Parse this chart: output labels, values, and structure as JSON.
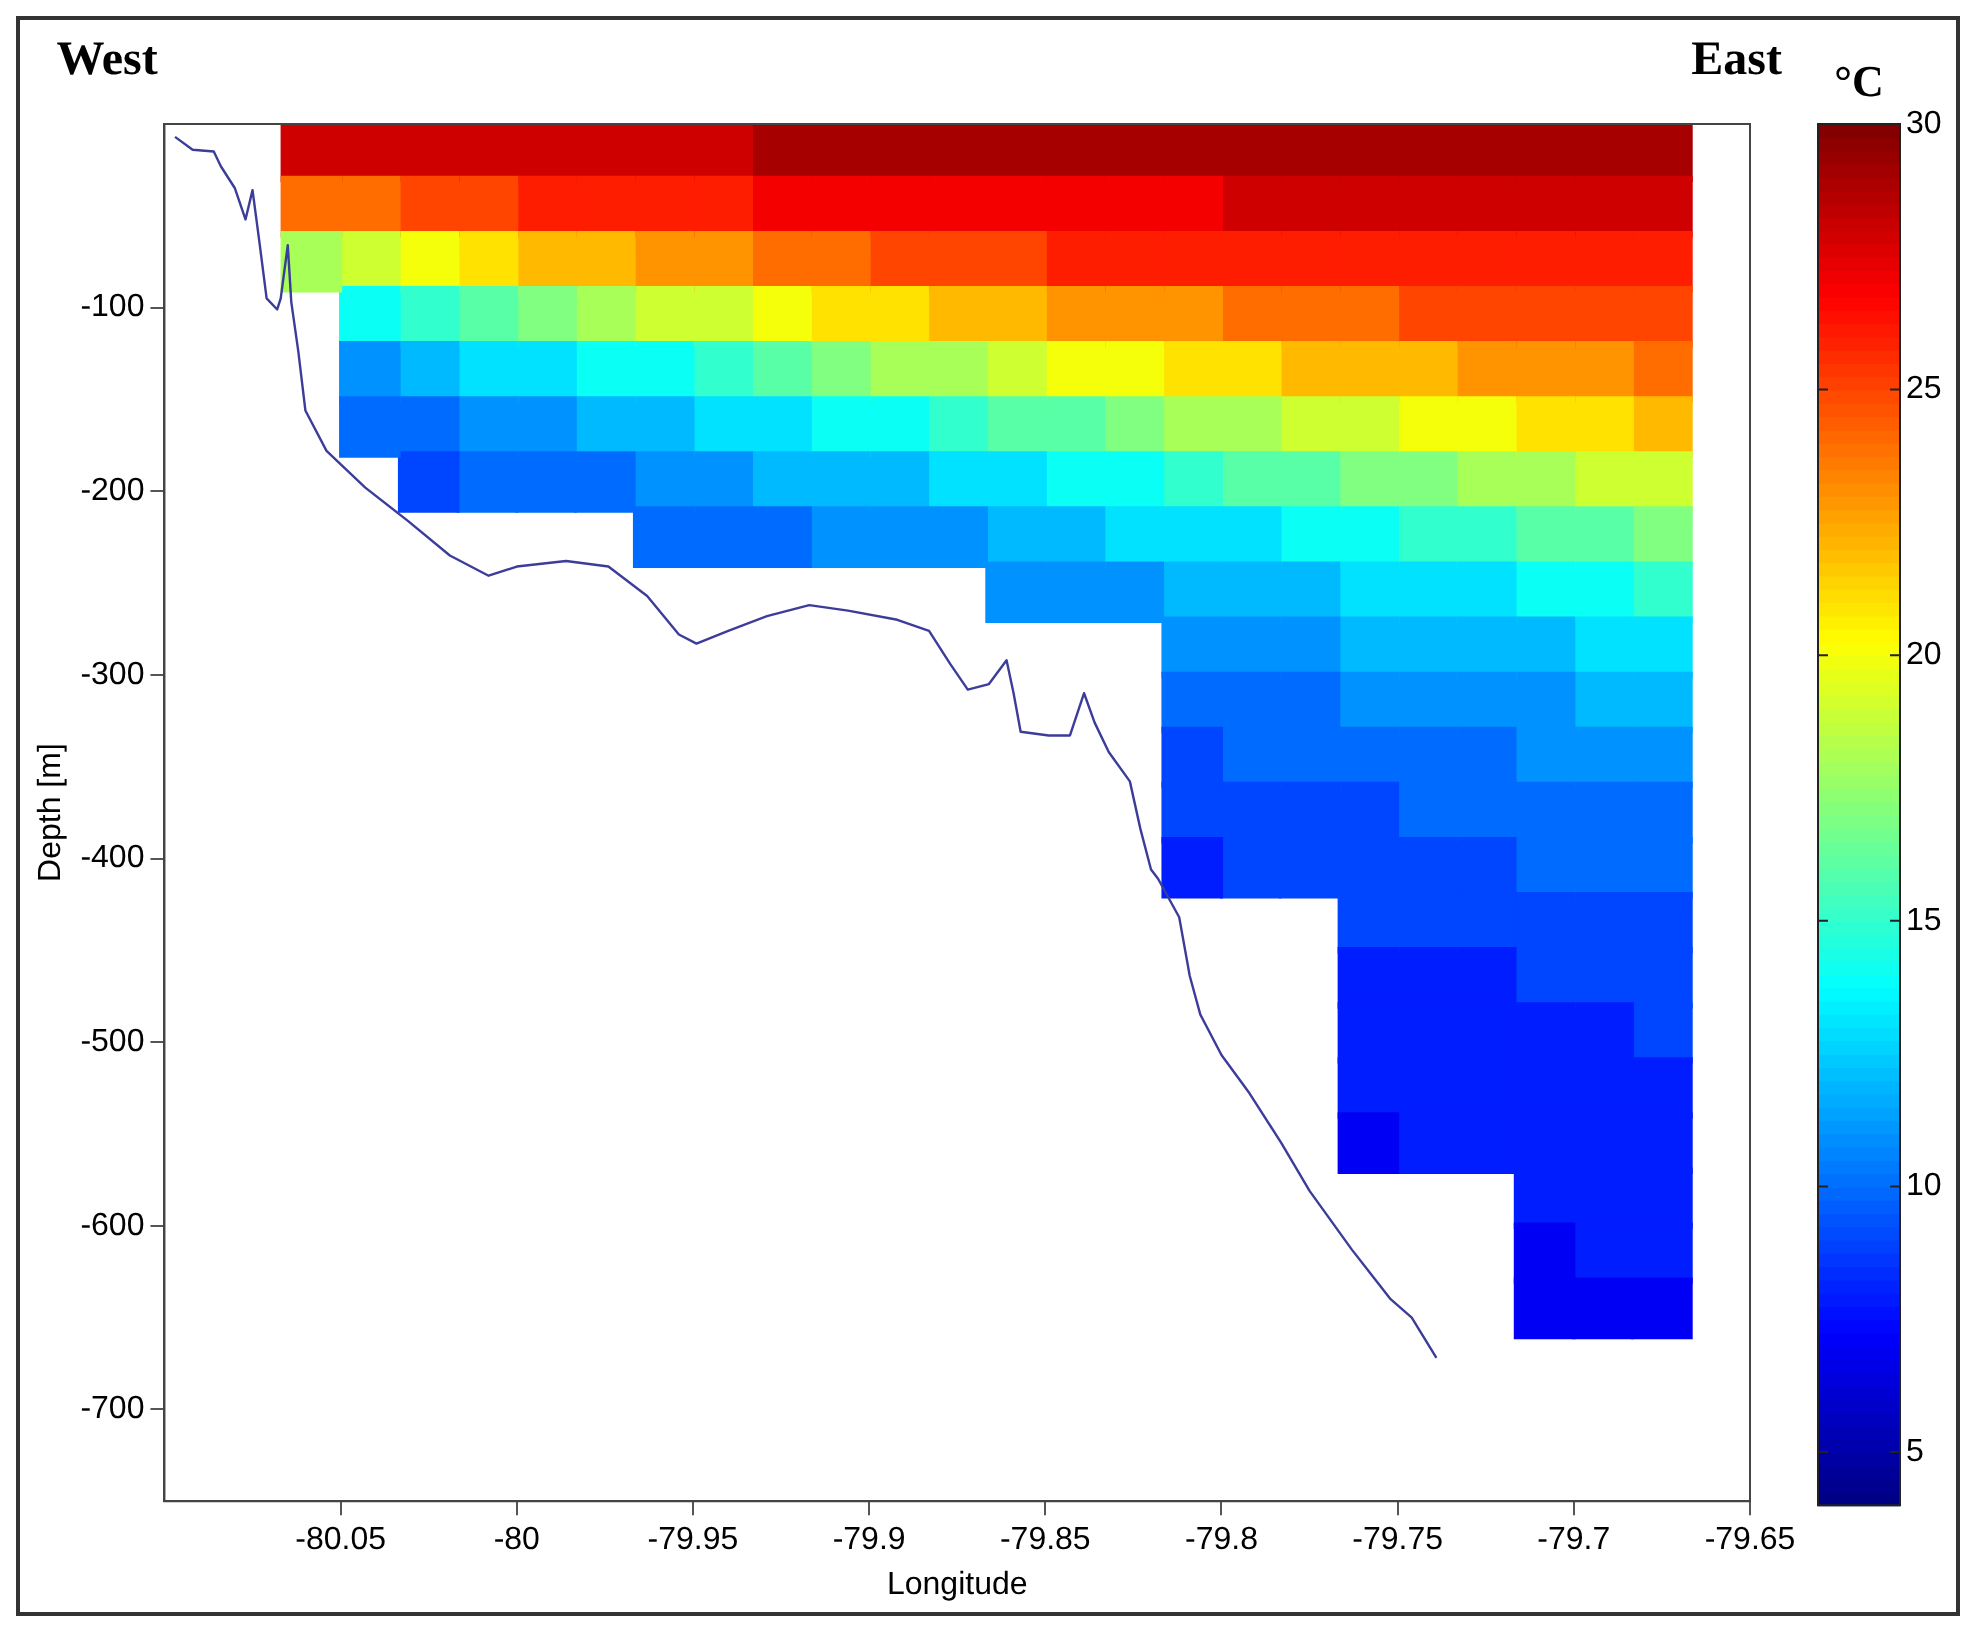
{
  "chart_data": {
    "type": "scatter",
    "marker": "square",
    "annotations": [
      "West",
      "East"
    ],
    "xlabel": "Longitude",
    "ylabel": "Depth [m]",
    "clabel": "°C",
    "clim": [
      4,
      30
    ],
    "cticks": [
      5,
      10,
      15,
      20,
      25,
      30
    ],
    "series": [
      {
        "type": "scatter",
        "x": [
          -80.0583,
          -80.0583,
          -80.0583
        ],
        "values": [
          -15,
          -45,
          -75
        ],
        "cvalues": [
          28,
          24,
          18
        ],
        "colors": [
          "#ce0000",
          "#ff6c00",
          "#a7ff58"
        ]
      },
      {
        "type": "scatter",
        "x": [
          -80.0417,
          -80.0417,
          -80.0417,
          -80.0417,
          -80.0417,
          -80.0417
        ],
        "values": [
          -15,
          -45,
          -75,
          -105,
          -135,
          -165
        ],
        "cvalues": [
          28,
          24,
          19,
          14,
          11,
          10
        ],
        "colors": [
          "#ce0000",
          "#ff6c00",
          "#ceff31",
          "#0afff5",
          "#0093ff",
          "#006cff"
        ]
      },
      {
        "type": "scatter",
        "x": [
          -80.025,
          -80.025,
          -80.025,
          -80.025,
          -80.025,
          -80.025,
          -80.025
        ],
        "values": [
          -15,
          -45,
          -75,
          -105,
          -135,
          -165,
          -195
        ],
        "cvalues": [
          28,
          25,
          20,
          15,
          12,
          10,
          9
        ],
        "colors": [
          "#ce0000",
          "#ff4500",
          "#f5ff0a",
          "#31ffce",
          "#00baff",
          "#006cff",
          "#0045ff"
        ]
      },
      {
        "type": "scatter",
        "x": [
          -80.0083,
          -80.0083,
          -80.0083,
          -80.0083,
          -80.0083,
          -80.0083,
          -80.0083
        ],
        "values": [
          -15,
          -45,
          -75,
          -105,
          -135,
          -165,
          -195
        ],
        "cvalues": [
          28,
          25,
          21,
          16,
          13,
          11,
          10
        ],
        "colors": [
          "#ce0000",
          "#ff4500",
          "#ffe200",
          "#58ffa7",
          "#00e2ff",
          "#0093ff",
          "#006cff"
        ]
      },
      {
        "type": "scatter",
        "x": [
          -79.9917,
          -79.9917,
          -79.9917,
          -79.9917,
          -79.9917,
          -79.9917,
          -79.9917
        ],
        "values": [
          -15,
          -45,
          -75,
          -105,
          -135,
          -165,
          -195
        ],
        "cvalues": [
          28,
          26,
          22,
          17,
          13,
          11,
          10
        ],
        "colors": [
          "#ce0000",
          "#ff1d00",
          "#ffba00",
          "#80ff80",
          "#00e2ff",
          "#0093ff",
          "#006cff"
        ]
      },
      {
        "type": "scatter",
        "x": [
          -79.975,
          -79.975,
          -79.975,
          -79.975,
          -79.975,
          -79.975,
          -79.975
        ],
        "values": [
          -15,
          -45,
          -75,
          -105,
          -135,
          -165,
          -195
        ],
        "cvalues": [
          28,
          26,
          22,
          18,
          14,
          12,
          10
        ],
        "colors": [
          "#ce0000",
          "#ff1d00",
          "#ffba00",
          "#a7ff58",
          "#0afff5",
          "#00baff",
          "#006cff"
        ]
      },
      {
        "type": "scatter",
        "x": [
          -79.9583,
          -79.9583,
          -79.9583,
          -79.9583,
          -79.9583,
          -79.9583,
          -79.9583,
          -79.9583
        ],
        "values": [
          -15,
          -45,
          -75,
          -105,
          -135,
          -165,
          -195,
          -225
        ],
        "cvalues": [
          28,
          26,
          23,
          19,
          14,
          12,
          11,
          10
        ],
        "colors": [
          "#ce0000",
          "#ff1d00",
          "#ff9300",
          "#ceff31",
          "#0afff5",
          "#00baff",
          "#0093ff",
          "#006cff"
        ]
      },
      {
        "type": "scatter",
        "x": [
          -79.9417,
          -79.9417,
          -79.9417,
          -79.9417,
          -79.9417,
          -79.9417,
          -79.9417,
          -79.9417
        ],
        "values": [
          -15,
          -45,
          -75,
          -105,
          -135,
          -165,
          -195,
          -225
        ],
        "cvalues": [
          28,
          26,
          23,
          19,
          15,
          13,
          11,
          10
        ],
        "colors": [
          "#ce0000",
          "#ff1d00",
          "#ff9300",
          "#ceff31",
          "#31ffce",
          "#00e2ff",
          "#0093ff",
          "#006cff"
        ]
      },
      {
        "type": "scatter",
        "x": [
          -79.925,
          -79.925,
          -79.925,
          -79.925,
          -79.925,
          -79.925,
          -79.925,
          -79.925
        ],
        "values": [
          -15,
          -45,
          -75,
          -105,
          -135,
          -165,
          -195,
          -225
        ],
        "cvalues": [
          29,
          27,
          24,
          20,
          16,
          13,
          12,
          10
        ],
        "colors": [
          "#a70000",
          "#f50000",
          "#ff6c00",
          "#f5ff0a",
          "#58ffa7",
          "#00e2ff",
          "#00baff",
          "#006cff"
        ]
      },
      {
        "type": "scatter",
        "x": [
          -79.9083,
          -79.9083,
          -79.9083,
          -79.9083,
          -79.9083,
          -79.9083,
          -79.9083,
          -79.9083
        ],
        "values": [
          -15,
          -45,
          -75,
          -105,
          -135,
          -165,
          -195,
          -225
        ],
        "cvalues": [
          29,
          27,
          24,
          21,
          17,
          14,
          12,
          11
        ],
        "colors": [
          "#a70000",
          "#f50000",
          "#ff6c00",
          "#ffe200",
          "#80ff80",
          "#0afff5",
          "#00baff",
          "#0093ff"
        ]
      },
      {
        "type": "scatter",
        "x": [
          -79.8917,
          -79.8917,
          -79.8917,
          -79.8917,
          -79.8917,
          -79.8917,
          -79.8917,
          -79.8917
        ],
        "values": [
          -15,
          -45,
          -75,
          -105,
          -135,
          -165,
          -195,
          -225
        ],
        "cvalues": [
          29,
          27,
          25,
          21,
          18,
          14,
          12,
          11
        ],
        "colors": [
          "#a70000",
          "#f50000",
          "#ff4500",
          "#ffe200",
          "#a7ff58",
          "#0afff5",
          "#00baff",
          "#0093ff"
        ]
      },
      {
        "type": "scatter",
        "x": [
          -79.875,
          -79.875,
          -79.875,
          -79.875,
          -79.875,
          -79.875,
          -79.875,
          -79.875
        ],
        "values": [
          -15,
          -45,
          -75,
          -105,
          -135,
          -165,
          -195,
          -225
        ],
        "cvalues": [
          29,
          27,
          25,
          22,
          18,
          15,
          13,
          11
        ],
        "colors": [
          "#a70000",
          "#f50000",
          "#ff4500",
          "#ffba00",
          "#a7ff58",
          "#31ffce",
          "#00e2ff",
          "#0093ff"
        ]
      },
      {
        "type": "scatter",
        "x": [
          -79.8583,
          -79.8583,
          -79.8583,
          -79.8583,
          -79.8583,
          -79.8583,
          -79.8583,
          -79.8583,
          -79.8583
        ],
        "values": [
          -15,
          -45,
          -75,
          -105,
          -135,
          -165,
          -195,
          -225,
          -255
        ],
        "cvalues": [
          29,
          27,
          25,
          22,
          19,
          16,
          13,
          12,
          11
        ],
        "colors": [
          "#a70000",
          "#f50000",
          "#ff4500",
          "#ffba00",
          "#ceff31",
          "#58ffa7",
          "#00e2ff",
          "#00baff",
          "#0093ff"
        ]
      },
      {
        "type": "scatter",
        "x": [
          -79.8417,
          -79.8417,
          -79.8417,
          -79.8417,
          -79.8417,
          -79.8417,
          -79.8417,
          -79.8417,
          -79.8417
        ],
        "values": [
          -15,
          -45,
          -75,
          -105,
          -135,
          -165,
          -195,
          -225,
          -255
        ],
        "cvalues": [
          29,
          27,
          26,
          23,
          20,
          16,
          14,
          12,
          11
        ],
        "colors": [
          "#a70000",
          "#f50000",
          "#ff1d00",
          "#ff9300",
          "#f5ff0a",
          "#58ffa7",
          "#0afff5",
          "#00baff",
          "#0093ff"
        ]
      },
      {
        "type": "scatter",
        "x": [
          -79.825,
          -79.825,
          -79.825,
          -79.825,
          -79.825,
          -79.825,
          -79.825,
          -79.825,
          -79.825
        ],
        "values": [
          -15,
          -45,
          -75,
          -105,
          -135,
          -165,
          -195,
          -225,
          -255
        ],
        "cvalues": [
          29,
          27,
          26,
          23,
          20,
          17,
          14,
          13,
          11
        ],
        "colors": [
          "#a70000",
          "#f50000",
          "#ff1d00",
          "#ff9300",
          "#f5ff0a",
          "#80ff80",
          "#0afff5",
          "#00e2ff",
          "#0093ff"
        ]
      },
      {
        "type": "scatter",
        "x": [
          -79.8083,
          -79.8083,
          -79.8083,
          -79.8083,
          -79.8083,
          -79.8083,
          -79.8083,
          -79.8083,
          -79.8083,
          -79.8083,
          -79.8083,
          -79.8083,
          -79.8083,
          -79.8083
        ],
        "values": [
          -15,
          -45,
          -75,
          -105,
          -135,
          -165,
          -195,
          -225,
          -255,
          -285,
          -315,
          -345,
          -375,
          -405
        ],
        "cvalues": [
          29,
          27,
          26,
          23,
          21,
          18,
          15,
          13,
          12,
          11,
          10,
          9,
          9,
          8
        ],
        "colors": [
          "#a70000",
          "#f50000",
          "#ff1d00",
          "#ff9300",
          "#ffe200",
          "#a7ff58",
          "#31ffce",
          "#00e2ff",
          "#00baff",
          "#0093ff",
          "#006cff",
          "#0045ff",
          "#0045ff",
          "#001dff"
        ]
      },
      {
        "type": "scatter",
        "x": [
          -79.7917,
          -79.7917,
          -79.7917,
          -79.7917,
          -79.7917,
          -79.7917,
          -79.7917,
          -79.7917,
          -79.7917,
          -79.7917,
          -79.7917,
          -79.7917,
          -79.7917,
          -79.7917
        ],
        "values": [
          -15,
          -45,
          -75,
          -105,
          -135,
          -165,
          -195,
          -225,
          -255,
          -285,
          -315,
          -345,
          -375,
          -405
        ],
        "cvalues": [
          29,
          28,
          26,
          24,
          21,
          18,
          16,
          13,
          12,
          11,
          10,
          10,
          9,
          9
        ],
        "colors": [
          "#a70000",
          "#ce0000",
          "#ff1d00",
          "#ff6c00",
          "#ffe200",
          "#a7ff58",
          "#58ffa7",
          "#00e2ff",
          "#00baff",
          "#0093ff",
          "#006cff",
          "#006cff",
          "#0045ff",
          "#0045ff"
        ]
      },
      {
        "type": "scatter",
        "x": [
          -79.775,
          -79.775,
          -79.775,
          -79.775,
          -79.775,
          -79.775,
          -79.775,
          -79.775,
          -79.775,
          -79.775,
          -79.775,
          -79.775,
          -79.775,
          -79.775
        ],
        "values": [
          -15,
          -45,
          -75,
          -105,
          -135,
          -165,
          -195,
          -225,
          -255,
          -285,
          -315,
          -345,
          -375,
          -405
        ],
        "cvalues": [
          29,
          28,
          26,
          24,
          22,
          19,
          16,
          14,
          12,
          11,
          10,
          10,
          9,
          9
        ],
        "colors": [
          "#a70000",
          "#ce0000",
          "#ff1d00",
          "#ff6c00",
          "#ffba00",
          "#ceff31",
          "#58ffa7",
          "#0afff5",
          "#00baff",
          "#0093ff",
          "#006cff",
          "#006cff",
          "#0045ff",
          "#0045ff"
        ]
      },
      {
        "type": "scatter",
        "x": [
          -79.7583,
          -79.7583,
          -79.7583,
          -79.7583,
          -79.7583,
          -79.7583,
          -79.7583,
          -79.7583,
          -79.7583,
          -79.7583,
          -79.7583,
          -79.7583,
          -79.7583,
          -79.7583,
          -79.7583,
          -79.7583,
          -79.7583,
          -79.7583,
          -79.7583
        ],
        "values": [
          -15,
          -45,
          -75,
          -105,
          -135,
          -165,
          -195,
          -225,
          -255,
          -285,
          -315,
          -345,
          -375,
          -405,
          -435,
          -465,
          -495,
          -525,
          -555
        ],
        "cvalues": [
          29,
          28,
          26,
          24,
          22,
          19,
          17,
          14,
          13,
          12,
          11,
          10,
          9,
          9,
          9,
          8,
          8,
          8,
          7
        ],
        "colors": [
          "#a70000",
          "#ce0000",
          "#ff1d00",
          "#ff6c00",
          "#ffba00",
          "#ceff31",
          "#80ff80",
          "#0afff5",
          "#00e2ff",
          "#00baff",
          "#0093ff",
          "#006cff",
          "#0045ff",
          "#0045ff",
          "#0045ff",
          "#001dff",
          "#001dff",
          "#001dff",
          "#0000f5"
        ]
      },
      {
        "type": "scatter",
        "x": [
          -79.7417,
          -79.7417,
          -79.7417,
          -79.7417,
          -79.7417,
          -79.7417,
          -79.7417,
          -79.7417,
          -79.7417,
          -79.7417,
          -79.7417,
          -79.7417,
          -79.7417,
          -79.7417,
          -79.7417,
          -79.7417,
          -79.7417,
          -79.7417,
          -79.7417
        ],
        "values": [
          -15,
          -45,
          -75,
          -105,
          -135,
          -165,
          -195,
          -225,
          -255,
          -285,
          -315,
          -345,
          -375,
          -405,
          -435,
          -465,
          -495,
          -525,
          -555
        ],
        "cvalues": [
          29,
          28,
          26,
          25,
          22,
          20,
          17,
          15,
          13,
          12,
          11,
          10,
          10,
          9,
          9,
          8,
          8,
          8,
          8
        ],
        "colors": [
          "#a70000",
          "#ce0000",
          "#ff1d00",
          "#ff4500",
          "#ffba00",
          "#f5ff0a",
          "#80ff80",
          "#31ffce",
          "#00e2ff",
          "#00baff",
          "#0093ff",
          "#006cff",
          "#006cff",
          "#0045ff",
          "#0045ff",
          "#001dff",
          "#001dff",
          "#001dff",
          "#001dff"
        ]
      },
      {
        "type": "scatter",
        "x": [
          -79.725,
          -79.725,
          -79.725,
          -79.725,
          -79.725,
          -79.725,
          -79.725,
          -79.725,
          -79.725,
          -79.725,
          -79.725,
          -79.725,
          -79.725,
          -79.725,
          -79.725,
          -79.725,
          -79.725,
          -79.725,
          -79.725
        ],
        "values": [
          -15,
          -45,
          -75,
          -105,
          -135,
          -165,
          -195,
          -225,
          -255,
          -285,
          -315,
          -345,
          -375,
          -405,
          -435,
          -465,
          -495,
          -525,
          -555
        ],
        "cvalues": [
          29,
          28,
          26,
          25,
          23,
          20,
          18,
          15,
          13,
          12,
          11,
          10,
          10,
          9,
          9,
          8,
          8,
          8,
          8
        ],
        "colors": [
          "#a70000",
          "#ce0000",
          "#ff1d00",
          "#ff4500",
          "#ff9300",
          "#f5ff0a",
          "#a7ff58",
          "#31ffce",
          "#00e2ff",
          "#00baff",
          "#0093ff",
          "#006cff",
          "#006cff",
          "#0045ff",
          "#0045ff",
          "#001dff",
          "#001dff",
          "#001dff",
          "#001dff"
        ]
      },
      {
        "type": "scatter",
        "x": [
          -79.7083,
          -79.7083,
          -79.7083,
          -79.7083,
          -79.7083,
          -79.7083,
          -79.7083,
          -79.7083,
          -79.7083,
          -79.7083,
          -79.7083,
          -79.7083,
          -79.7083,
          -79.7083,
          -79.7083,
          -79.7083,
          -79.7083,
          -79.7083,
          -79.7083,
          -79.7083,
          -79.7083,
          -79.7083
        ],
        "values": [
          -15,
          -45,
          -75,
          -105,
          -135,
          -165,
          -195,
          -225,
          -255,
          -285,
          -315,
          -345,
          -375,
          -405,
          -435,
          -465,
          -495,
          -525,
          -555,
          -585,
          -615,
          -645
        ],
        "cvalues": [
          29,
          28,
          26,
          25,
          23,
          21,
          18,
          16,
          14,
          12,
          11,
          11,
          10,
          10,
          9,
          9,
          8,
          8,
          8,
          8,
          7,
          7
        ],
        "colors": [
          "#a70000",
          "#ce0000",
          "#ff1d00",
          "#ff4500",
          "#ff9300",
          "#ffe200",
          "#a7ff58",
          "#58ffa7",
          "#0afff5",
          "#00baff",
          "#0093ff",
          "#0093ff",
          "#006cff",
          "#006cff",
          "#0045ff",
          "#0045ff",
          "#001dff",
          "#001dff",
          "#001dff",
          "#001dff",
          "#0000f5",
          "#0000f5"
        ]
      },
      {
        "type": "scatter",
        "x": [
          -79.6917,
          -79.6917,
          -79.6917,
          -79.6917,
          -79.6917,
          -79.6917,
          -79.6917,
          -79.6917,
          -79.6917,
          -79.6917,
          -79.6917,
          -79.6917,
          -79.6917,
          -79.6917,
          -79.6917,
          -79.6917,
          -79.6917,
          -79.6917,
          -79.6917,
          -79.6917,
          -79.6917,
          -79.6917
        ],
        "values": [
          -15,
          -45,
          -75,
          -105,
          -135,
          -165,
          -195,
          -225,
          -255,
          -285,
          -315,
          -345,
          -375,
          -405,
          -435,
          -465,
          -495,
          -525,
          -555,
          -585,
          -615,
          -645
        ],
        "cvalues": [
          29,
          28,
          26,
          25,
          23,
          21,
          19,
          16,
          14,
          13,
          12,
          11,
          10,
          10,
          9,
          9,
          8,
          8,
          8,
          8,
          8,
          7
        ],
        "colors": [
          "#a70000",
          "#ce0000",
          "#ff1d00",
          "#ff4500",
          "#ff9300",
          "#ffe200",
          "#ceff31",
          "#58ffa7",
          "#0afff5",
          "#00e2ff",
          "#00baff",
          "#0093ff",
          "#006cff",
          "#006cff",
          "#0045ff",
          "#0045ff",
          "#001dff",
          "#001dff",
          "#001dff",
          "#001dff",
          "#001dff",
          "#0000f5"
        ]
      },
      {
        "type": "scatter",
        "x": [
          -79.675,
          -79.675,
          -79.675,
          -79.675,
          -79.675,
          -79.675,
          -79.675,
          -79.675,
          -79.675,
          -79.675,
          -79.675,
          -79.675,
          -79.675,
          -79.675,
          -79.675,
          -79.675,
          -79.675,
          -79.675,
          -79.675,
          -79.675,
          -79.675,
          -79.675
        ],
        "values": [
          -15,
          -45,
          -75,
          -105,
          -135,
          -165,
          -195,
          -225,
          -255,
          -285,
          -315,
          -345,
          -375,
          -405,
          -435,
          -465,
          -495,
          -525,
          -555,
          -585,
          -615,
          -645
        ],
        "cvalues": [
          29,
          28,
          26,
          25,
          24,
          22,
          19,
          17,
          15,
          13,
          12,
          11,
          10,
          10,
          9,
          9,
          9,
          8,
          8,
          8,
          8,
          7
        ],
        "colors": [
          "#a70000",
          "#ce0000",
          "#ff1d00",
          "#ff4500",
          "#ff6c00",
          "#ffba00",
          "#ceff31",
          "#80ff80",
          "#31ffce",
          "#00e2ff",
          "#00baff",
          "#0093ff",
          "#006cff",
          "#006cff",
          "#0045ff",
          "#0045ff",
          "#0045ff",
          "#001dff",
          "#001dff",
          "#001dff",
          "#001dff",
          "#0000f5"
        ]
      },
      {
        "type": "line",
        "marker": "none",
        "color": "#3c3c9a",
        "x": [
          -80.097,
          -80.092,
          -80.086,
          -80.084,
          -80.08,
          -80.077,
          -80.075,
          -80.073,
          -80.071,
          -80.068,
          -80.067,
          -80.065,
          -80.064,
          -80.062,
          -80.06,
          -80.054,
          -80.043,
          -80.031,
          -80.019,
          -80.008,
          -80.0,
          -79.986,
          -79.974,
          -79.963,
          -79.954,
          -79.949,
          -79.94,
          -79.929,
          -79.917,
          -79.906,
          -79.892,
          -79.883,
          -79.877,
          -79.872,
          -79.866,
          -79.861,
          -79.859,
          -79.857,
          -79.849,
          -79.843,
          -79.839,
          -79.836,
          -79.832,
          -79.826,
          -79.823,
          -79.82,
          -79.818,
          -79.812,
          -79.809,
          -79.806,
          -79.8,
          -79.792,
          -79.783,
          -79.775,
          -79.763,
          -79.752,
          -79.746,
          -79.739
        ],
        "values": [
          -7,
          -14,
          -15,
          -23,
          -35,
          -52,
          -36,
          -65,
          -95,
          -101,
          -95,
          -66,
          -97,
          -124,
          -156,
          -178,
          -198,
          -216,
          -235,
          -246,
          -241,
          -238,
          -241,
          -257,
          -278,
          -283,
          -276,
          -268,
          -262,
          -265,
          -270,
          -276,
          -294,
          -308,
          -305,
          -292,
          -310,
          -331,
          -333,
          -333,
          -310,
          -326,
          -342,
          -358,
          -384,
          -406,
          -411,
          -432,
          -464,
          -485,
          -507,
          -528,
          -555,
          -581,
          -613,
          -640,
          -650,
          -672
        ]
      }
    ],
    "xlim": [
      -80.1,
      -79.65
    ],
    "xticks": [
      -80.05,
      -80,
      -79.95,
      -79.9,
      -79.85,
      -79.8,
      -79.75,
      -79.7,
      -79.65
    ],
    "ylim": [
      -750,
      0
    ],
    "yticks": [
      -700,
      -600,
      -500,
      -400,
      -300,
      -200,
      -100
    ],
    "grid": false,
    "legend": false
  }
}
